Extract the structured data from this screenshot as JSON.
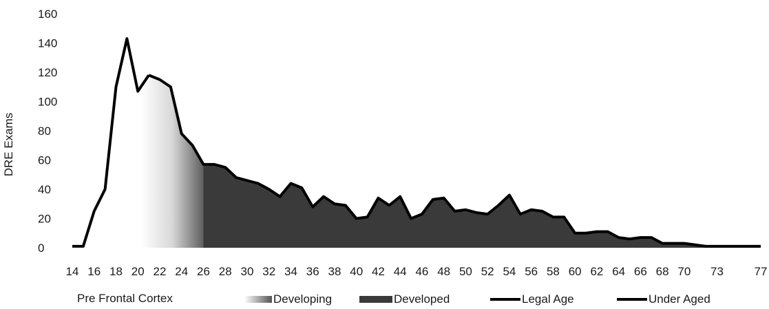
{
  "chart_data": {
    "type": "area",
    "title": "",
    "xlabel": "",
    "ylabel": "DRE Exams",
    "ylim": [
      0,
      160
    ],
    "yticks": [
      "0",
      "20",
      "40",
      "60",
      "80",
      "100",
      "120",
      "140",
      "160"
    ],
    "grid": false,
    "legend_position": "bottom",
    "x": [
      14,
      15,
      16,
      17,
      18,
      19,
      20,
      21,
      22,
      23,
      24,
      25,
      26,
      27,
      28,
      29,
      30,
      31,
      32,
      33,
      34,
      35,
      36,
      37,
      38,
      39,
      40,
      41,
      42,
      43,
      44,
      45,
      46,
      47,
      48,
      49,
      50,
      51,
      52,
      53,
      54,
      55,
      56,
      57,
      58,
      59,
      60,
      61,
      62,
      63,
      64,
      65,
      66,
      67,
      68,
      69,
      70,
      71,
      72,
      73,
      74,
      75,
      76,
      77
    ],
    "xtick_labels": [
      "14",
      "16",
      "18",
      "20",
      "22",
      "24",
      "26",
      "28",
      "30",
      "32",
      "34",
      "36",
      "38",
      "40",
      "42",
      "44",
      "46",
      "48",
      "50",
      "52",
      "54",
      "56",
      "58",
      "60",
      "62",
      "64",
      "66",
      "68",
      "70",
      "73",
      "77"
    ],
    "values": [
      1,
      1,
      25,
      40,
      110,
      143,
      107,
      118,
      115,
      110,
      78,
      70,
      57,
      57,
      55,
      48,
      46,
      44,
      40,
      35,
      44,
      41,
      28,
      35,
      30,
      29,
      20,
      21,
      34,
      29,
      35,
      20,
      23,
      33,
      34,
      25,
      26,
      24,
      23,
      29,
      36,
      23,
      26,
      25,
      21,
      21,
      10,
      10,
      11,
      11,
      7,
      6,
      7,
      7,
      3,
      3,
      3,
      2,
      1,
      1,
      1,
      1,
      1,
      1
    ],
    "series": [
      {
        "name": "Developing",
        "x_range": [
          20,
          26
        ]
      },
      {
        "name": "Developed",
        "x_range": [
          26,
          77
        ]
      },
      {
        "name": "Legal Age",
        "x_range": [
          21,
          77
        ]
      },
      {
        "name": "Under Aged",
        "x_range": [
          14,
          21
        ]
      }
    ],
    "legend_title": "Pre Frontal Cortex",
    "colors": {
      "developing_start": "#ffffff",
      "developing_end": "#505050",
      "developed": "#3a3a3a",
      "line": "#000000"
    }
  },
  "legend": {
    "title": "Pre Frontal Cortex",
    "items": [
      {
        "label": "Developing"
      },
      {
        "label": "Developed"
      },
      {
        "label": "Legal Age"
      },
      {
        "label": "Under Aged"
      }
    ]
  }
}
